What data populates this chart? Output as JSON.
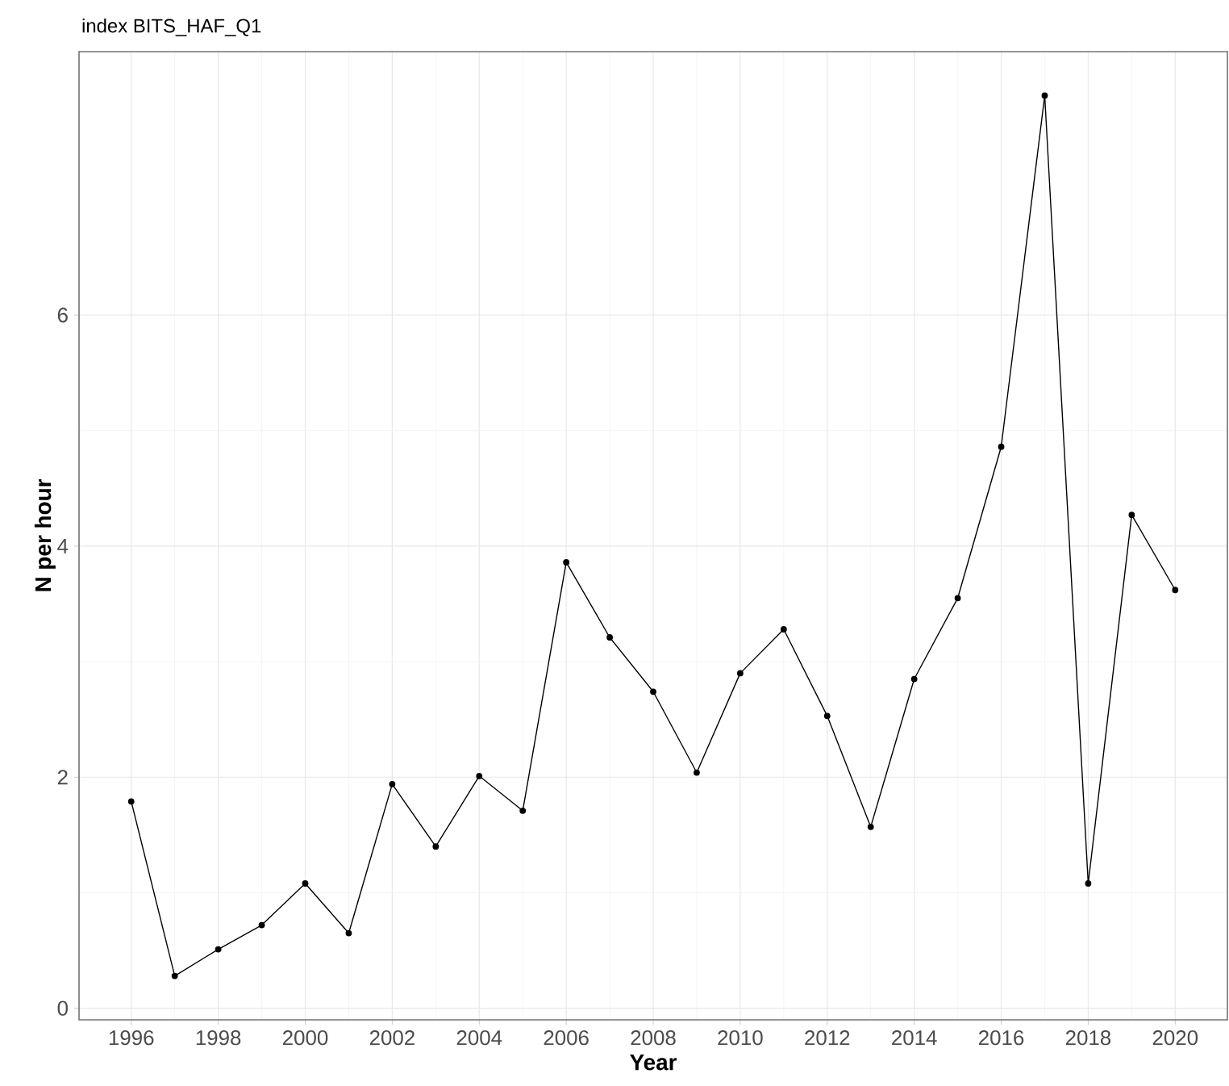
{
  "chart_data": {
    "type": "line",
    "title": "index BITS_HAF_Q1",
    "xlabel": "Year",
    "ylabel": "N per hour",
    "x": [
      1996,
      1997,
      1998,
      1999,
      2000,
      2001,
      2002,
      2003,
      2004,
      2005,
      2006,
      2007,
      2008,
      2009,
      2010,
      2011,
      2012,
      2013,
      2014,
      2015,
      2016,
      2017,
      2018,
      2019,
      2020
    ],
    "series": [
      {
        "color": "#000000",
        "values": [
          1.79,
          0.28,
          0.51,
          0.72,
          1.08,
          0.65,
          1.94,
          1.4,
          2.01,
          1.71,
          3.86,
          3.21,
          2.74,
          2.04,
          2.9,
          3.28,
          2.53,
          1.57,
          2.85,
          3.55,
          4.86,
          7.9,
          1.08,
          4.27,
          3.62
        ]
      }
    ],
    "xlim": [
      1994.8,
      2021.2
    ],
    "ylim": [
      -0.1,
      8.28
    ],
    "xticks": [
      1996,
      1998,
      2000,
      2002,
      2004,
      2006,
      2008,
      2010,
      2012,
      2014,
      2016,
      2018,
      2020
    ],
    "yticks": [
      0,
      2,
      4,
      6
    ],
    "grid": true,
    "marker": "circle",
    "line_style": "solid"
  }
}
